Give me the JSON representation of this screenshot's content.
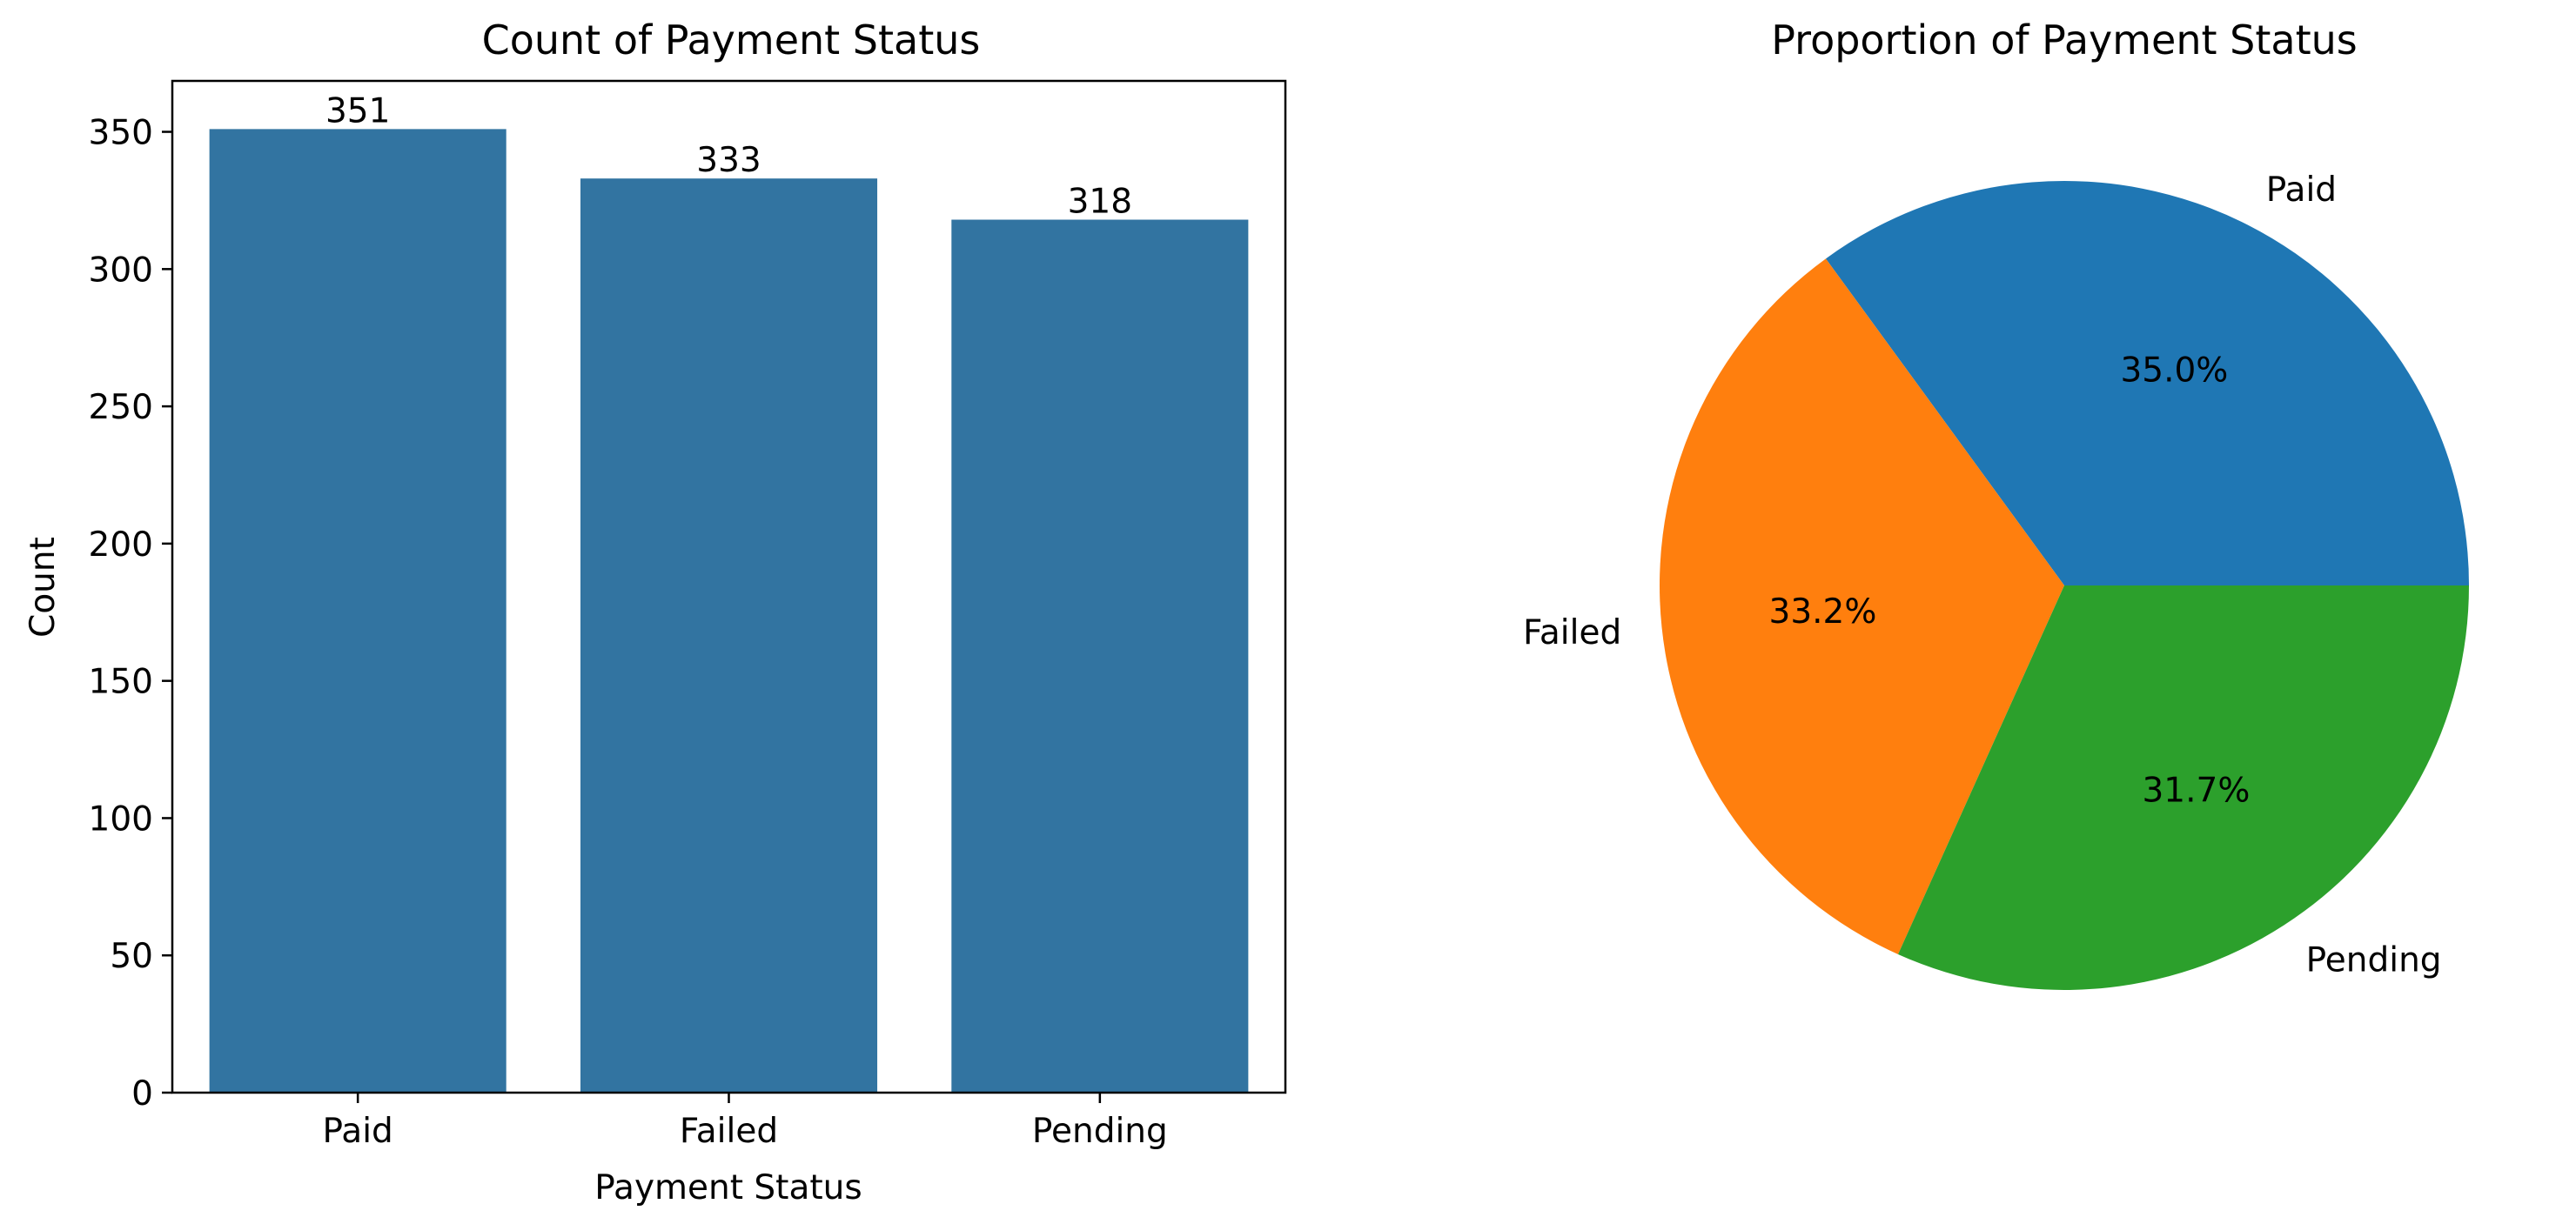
{
  "chart_data": [
    {
      "type": "bar",
      "title": "Count of Payment Status",
      "xlabel": "Payment Status",
      "ylabel": "Count",
      "categories": [
        "Paid",
        "Failed",
        "Pending"
      ],
      "values": [
        351,
        333,
        318
      ],
      "data_labels": [
        "351",
        "333",
        "318"
      ],
      "ylim": [
        0,
        368.55
      ],
      "yticks": [
        0,
        50,
        100,
        150,
        200,
        250,
        300,
        350
      ],
      "ytick_labels": [
        "0",
        "50",
        "100",
        "150",
        "200",
        "250",
        "300",
        "350"
      ],
      "grid": false,
      "color": "#3274a1"
    },
    {
      "type": "pie",
      "title": "Proportion of Payment Status",
      "labels": [
        "Paid",
        "Failed",
        "Pending"
      ],
      "values": [
        351,
        333,
        318
      ],
      "percent_labels": [
        "35.0%",
        "33.2%",
        "31.7%"
      ],
      "colors": [
        "#1f77b4",
        "#ff7f0e",
        "#2ca02c"
      ]
    }
  ]
}
